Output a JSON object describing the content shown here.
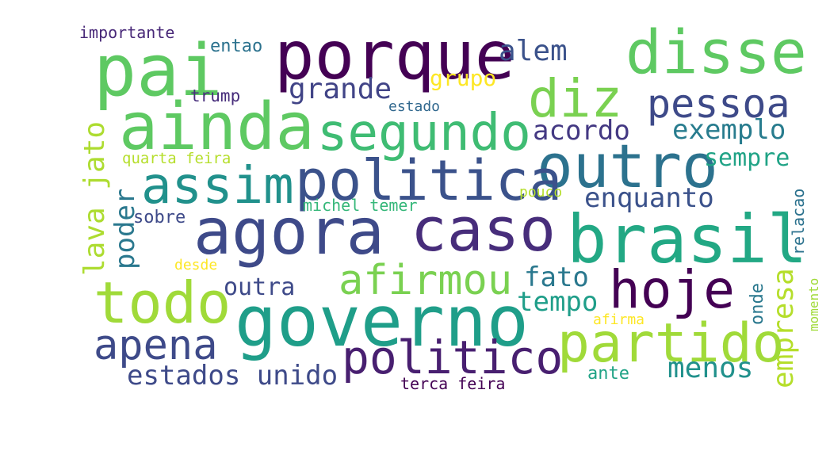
{
  "words": [
    {
      "id": "importante",
      "text": "importante",
      "color": "#482878"
    },
    {
      "id": "entao",
      "text": "entao",
      "color": "#2c728e"
    },
    {
      "id": "pai",
      "text": "pai",
      "color": "#5ec962"
    },
    {
      "id": "porque",
      "text": "porque",
      "color": "#440154"
    },
    {
      "id": "alem",
      "text": "alem",
      "color": "#3b528b"
    },
    {
      "id": "disse",
      "text": "disse",
      "color": "#5ec962"
    },
    {
      "id": "grupo",
      "text": "grupo",
      "color": "#fde725"
    },
    {
      "id": "grande",
      "text": "grande",
      "color": "#414487"
    },
    {
      "id": "diz",
      "text": "diz",
      "color": "#7ad151"
    },
    {
      "id": "trump",
      "text": "trump",
      "color": "#472d7b"
    },
    {
      "id": "pessoa",
      "text": "pessoa",
      "color": "#3e4a89"
    },
    {
      "id": "estado",
      "text": "estado",
      "color": "#31688e"
    },
    {
      "id": "ainda",
      "text": "ainda",
      "color": "#5ec962"
    },
    {
      "id": "segundo",
      "text": "segundo",
      "color": "#3fbc73"
    },
    {
      "id": "acordo",
      "text": "acordo",
      "color": "#443983"
    },
    {
      "id": "exemplo",
      "text": "exemplo",
      "color": "#287c8e"
    },
    {
      "id": "quarta-feira",
      "text": "quarta feira",
      "color": "#b5de2b"
    },
    {
      "id": "outro",
      "text": "outro",
      "color": "#2c728e"
    },
    {
      "id": "sempre",
      "text": "sempre",
      "color": "#20a386"
    },
    {
      "id": "assim",
      "text": "assim",
      "color": "#21918c"
    },
    {
      "id": "politica",
      "text": "politica",
      "color": "#3b528b"
    },
    {
      "id": "lava-jato",
      "text": "lava jato",
      "color": "#addc30"
    },
    {
      "id": "poder",
      "text": "poder",
      "color": "#2a788e"
    },
    {
      "id": "pouco",
      "text": "pouco",
      "color": "#b5de2b"
    },
    {
      "id": "enquanto",
      "text": "enquanto",
      "color": "#3b528b"
    },
    {
      "id": "relacao",
      "text": "relacao",
      "color": "#2c728e"
    },
    {
      "id": "michel-temer",
      "text": "michel temer",
      "color": "#35b779"
    },
    {
      "id": "sobre",
      "text": "sobre",
      "color": "#3e4a89"
    },
    {
      "id": "agora",
      "text": "agora",
      "color": "#3e4a89"
    },
    {
      "id": "caso",
      "text": "caso",
      "color": "#472d7b"
    },
    {
      "id": "brasil",
      "text": "brasil",
      "color": "#22a884"
    },
    {
      "id": "desde",
      "text": "desde",
      "color": "#fde725"
    },
    {
      "id": "momento",
      "text": "momento",
      "color": "#a0da39"
    },
    {
      "id": "empresa",
      "text": "empresa",
      "color": "#b5de2b"
    },
    {
      "id": "afirmou",
      "text": "afirmou",
      "color": "#7ad151"
    },
    {
      "id": "fato",
      "text": "fato",
      "color": "#2a788e"
    },
    {
      "id": "hoje",
      "text": "hoje",
      "color": "#440154"
    },
    {
      "id": "outra",
      "text": "outra",
      "color": "#3e4a89"
    },
    {
      "id": "todo",
      "text": "todo",
      "color": "#a0da39"
    },
    {
      "id": "tempo",
      "text": "tempo",
      "color": "#1f9e89"
    },
    {
      "id": "onde",
      "text": "onde",
      "color": "#2a788e"
    },
    {
      "id": "governo",
      "text": "governo",
      "color": "#1f9e89"
    },
    {
      "id": "afirma",
      "text": "afirma",
      "color": "#fde725"
    },
    {
      "id": "apena",
      "text": "apena",
      "color": "#3e4a89"
    },
    {
      "id": "partido",
      "text": "partido",
      "color": "#a0da39"
    },
    {
      "id": "politico",
      "text": "politico",
      "color": "#481f70"
    },
    {
      "id": "menos",
      "text": "menos",
      "color": "#21918c"
    },
    {
      "id": "estados-unido",
      "text": "estados unido",
      "color": "#3e4a89"
    },
    {
      "id": "ante",
      "text": "ante",
      "color": "#20a386"
    },
    {
      "id": "terca-feira",
      "text": "terca feira",
      "color": "#440154"
    }
  ]
}
